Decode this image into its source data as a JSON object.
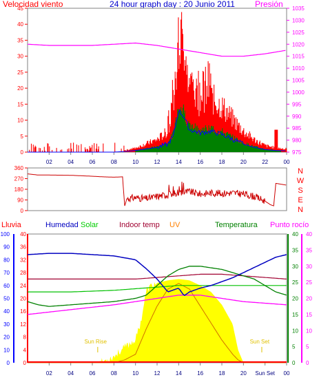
{
  "header": {
    "left_title": "Velocidad viento",
    "center_title": "24 hour graph day : 20 Junio 2011",
    "right_title": "Presión"
  },
  "colors": {
    "wind": "#ff0000",
    "gust_avg": "#0000ff",
    "green": "#008000",
    "pressure": "#ff00ff",
    "direction": "#cc0000",
    "humidity": "#0000c0",
    "solar": "#ffff00",
    "solar_line": "#00c000",
    "indoor": "#a00030",
    "uv": "#ff8000",
    "temperature": "#008000",
    "dew": "#ff00ff",
    "rain": "#ff0000",
    "axis_left": "#ff0000",
    "axis_right_pressure": "#ff00ff",
    "axis_humidity": "#0000ff",
    "axis_temp": "#008000",
    "axis_dew": "#ff00ff"
  },
  "chart_data": [
    {
      "type": "line",
      "name": "wind-pressure",
      "title": "24 hour graph day : 20 Junio 2011",
      "ylabel_left": "Velocidad viento",
      "ylabel_right": "Presión",
      "x_ticks": [
        "02",
        "04",
        "06",
        "08",
        "10",
        "12",
        "14",
        "16",
        "18",
        "20",
        "22",
        "00"
      ],
      "y_left_ticks": [
        "0",
        "5",
        "10",
        "15",
        "20",
        "25",
        "30",
        "35",
        "40",
        "45"
      ],
      "y_right_ticks": [
        "975",
        "980",
        "985",
        "990",
        "995",
        "1000",
        "1005",
        "1010",
        "1015",
        "1020",
        "1025",
        "1030",
        "1035"
      ],
      "ylim_left": [
        0,
        45
      ],
      "ylim_right": [
        975,
        1035
      ],
      "pressure": {
        "hours": [
          0,
          2,
          4,
          6,
          8,
          10,
          12,
          14,
          16,
          18,
          20,
          22,
          24
        ],
        "values": [
          1020,
          1019.5,
          1019.5,
          1019.5,
          1020,
          1020.5,
          1019.5,
          1018,
          1016.5,
          1015,
          1015,
          1016,
          1017.5
        ]
      },
      "wind_avg": {
        "hours": [
          0,
          8,
          9,
          10,
          11,
          12,
          13,
          13.5,
          14,
          14.5,
          15,
          16,
          17,
          18,
          19,
          20,
          21,
          22,
          23,
          24
        ],
        "values": [
          0,
          0,
          0.2,
          0.5,
          1,
          1.5,
          2.5,
          5,
          13,
          11,
          7,
          6,
          6.5,
          5.5,
          4,
          2.5,
          1.5,
          0.8,
          0.5,
          0.4
        ]
      }
    },
    {
      "type": "line",
      "name": "wind-direction",
      "y_left_ticks": [
        "0",
        "90",
        "180",
        "270",
        "360"
      ],
      "y_right_labels": [
        "N",
        "W",
        "S",
        "E",
        "N"
      ],
      "ylim": [
        0,
        360
      ],
      "direction": {
        "hours": [
          0,
          1,
          2,
          4,
          6,
          7,
          8,
          8.8,
          9,
          9.2,
          10,
          11,
          12,
          13,
          14,
          15,
          16,
          17,
          18,
          19,
          20,
          21,
          22,
          22.5,
          22.8,
          23,
          24
        ],
        "values": [
          310,
          300,
          300,
          298,
          290,
          285,
          282,
          285,
          40,
          100,
          110,
          100,
          120,
          135,
          150,
          160,
          140,
          150,
          145,
          150,
          140,
          120,
          80,
          50,
          40,
          230,
          215
        ]
      }
    },
    {
      "type": "line",
      "name": "temperature-humidity",
      "left_labels": [
        "Lluvia",
        "Humedad",
        "Solar",
        "Indoor temp",
        "UV",
        "Temperatura",
        "Punto rocío"
      ],
      "x_ticks": [
        "02",
        "04",
        "06",
        "08",
        "10",
        "12",
        "14",
        "16",
        "18",
        "20",
        "Sun Set",
        "00"
      ],
      "humidity_ticks": [
        "0",
        "10",
        "20",
        "30",
        "40",
        "50",
        "60",
        "70",
        "80",
        "90",
        "100"
      ],
      "rain_ticks": [
        "0",
        "4",
        "8",
        "12",
        "16",
        "20",
        "24",
        "28",
        "32",
        "36",
        "40"
      ],
      "temp_ticks": [
        "0",
        "5",
        "10",
        "15",
        "20",
        "25",
        "30",
        "35",
        "40"
      ],
      "annotations": [
        "Sun Rise",
        "Sun Set"
      ],
      "humidity": {
        "hours": [
          0,
          2,
          4,
          6,
          8,
          10,
          11,
          12,
          13,
          14,
          14.5,
          15,
          16,
          17,
          18,
          19,
          20,
          21,
          22,
          23,
          24
        ],
        "values": [
          84,
          85,
          85,
          84,
          83,
          80,
          73,
          65,
          55,
          58,
          52,
          55,
          58,
          60,
          63,
          66,
          70,
          74,
          78,
          82,
          84
        ]
      },
      "temperature": {
        "hours": [
          0,
          1,
          2,
          4,
          6,
          8,
          10,
          11,
          12,
          13,
          14,
          15,
          16,
          17,
          18,
          19,
          20,
          21,
          22,
          23,
          24
        ],
        "values": [
          19,
          18,
          17.5,
          18,
          18.5,
          19,
          20,
          21,
          24,
          27,
          29,
          30,
          30,
          29.5,
          29,
          28,
          27,
          26,
          24,
          22,
          21
        ]
      },
      "indoor_temp": {
        "hours": [
          0,
          4,
          8,
          10,
          12,
          14,
          16,
          18,
          20,
          22,
          24
        ],
        "values": [
          26,
          26,
          26,
          26,
          26.5,
          27,
          27.5,
          27.5,
          27,
          26.5,
          26
        ]
      },
      "dew_point": {
        "hours": [
          0,
          4,
          8,
          10,
          12,
          14,
          16,
          18,
          20,
          22,
          24
        ],
        "values": [
          15,
          16.5,
          18,
          19,
          20,
          21,
          21,
          20,
          19,
          18.5,
          18
        ]
      },
      "solar_line": {
        "hours": [
          0,
          4,
          8,
          10,
          12,
          14,
          16,
          18,
          20,
          24
        ],
        "values": [
          22,
          22,
          22.5,
          23,
          23.5,
          24,
          24,
          24,
          24,
          24
        ]
      },
      "solar_fill": {
        "hours": [
          0,
          6.5,
          7,
          8,
          9,
          10,
          10.5,
          11,
          11.5,
          12,
          13,
          14,
          15,
          16,
          17,
          18,
          19,
          19.5,
          20,
          24
        ],
        "values": [
          0,
          0,
          1,
          5,
          12,
          18,
          32,
          56,
          60,
          62,
          64,
          65,
          64,
          60,
          55,
          45,
          30,
          10,
          0,
          0
        ]
      },
      "uv": {
        "hours": [
          0,
          8,
          9,
          10,
          11,
          12,
          13,
          14,
          15,
          16,
          17,
          18,
          19,
          19.5,
          20,
          24
        ],
        "values": [
          0,
          0,
          1,
          3,
          12,
          20,
          26,
          28,
          26,
          20,
          14,
          8,
          3,
          1,
          0,
          0
        ]
      },
      "rain": {
        "total": 0
      }
    }
  ]
}
